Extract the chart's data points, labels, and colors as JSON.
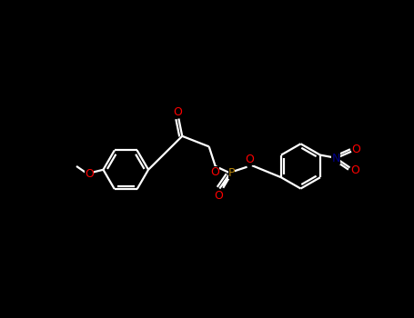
{
  "bg_color": "#000000",
  "bond_color": "#ffffff",
  "atom_colors": {
    "O": "#ff0000",
    "P": "#b8860b",
    "N": "#00008b",
    "C": "#ffffff"
  },
  "figsize": [
    4.55,
    3.5
  ],
  "dpi": 100,
  "lw": 1.6,
  "ring_r": 32,
  "fontsize": 9
}
